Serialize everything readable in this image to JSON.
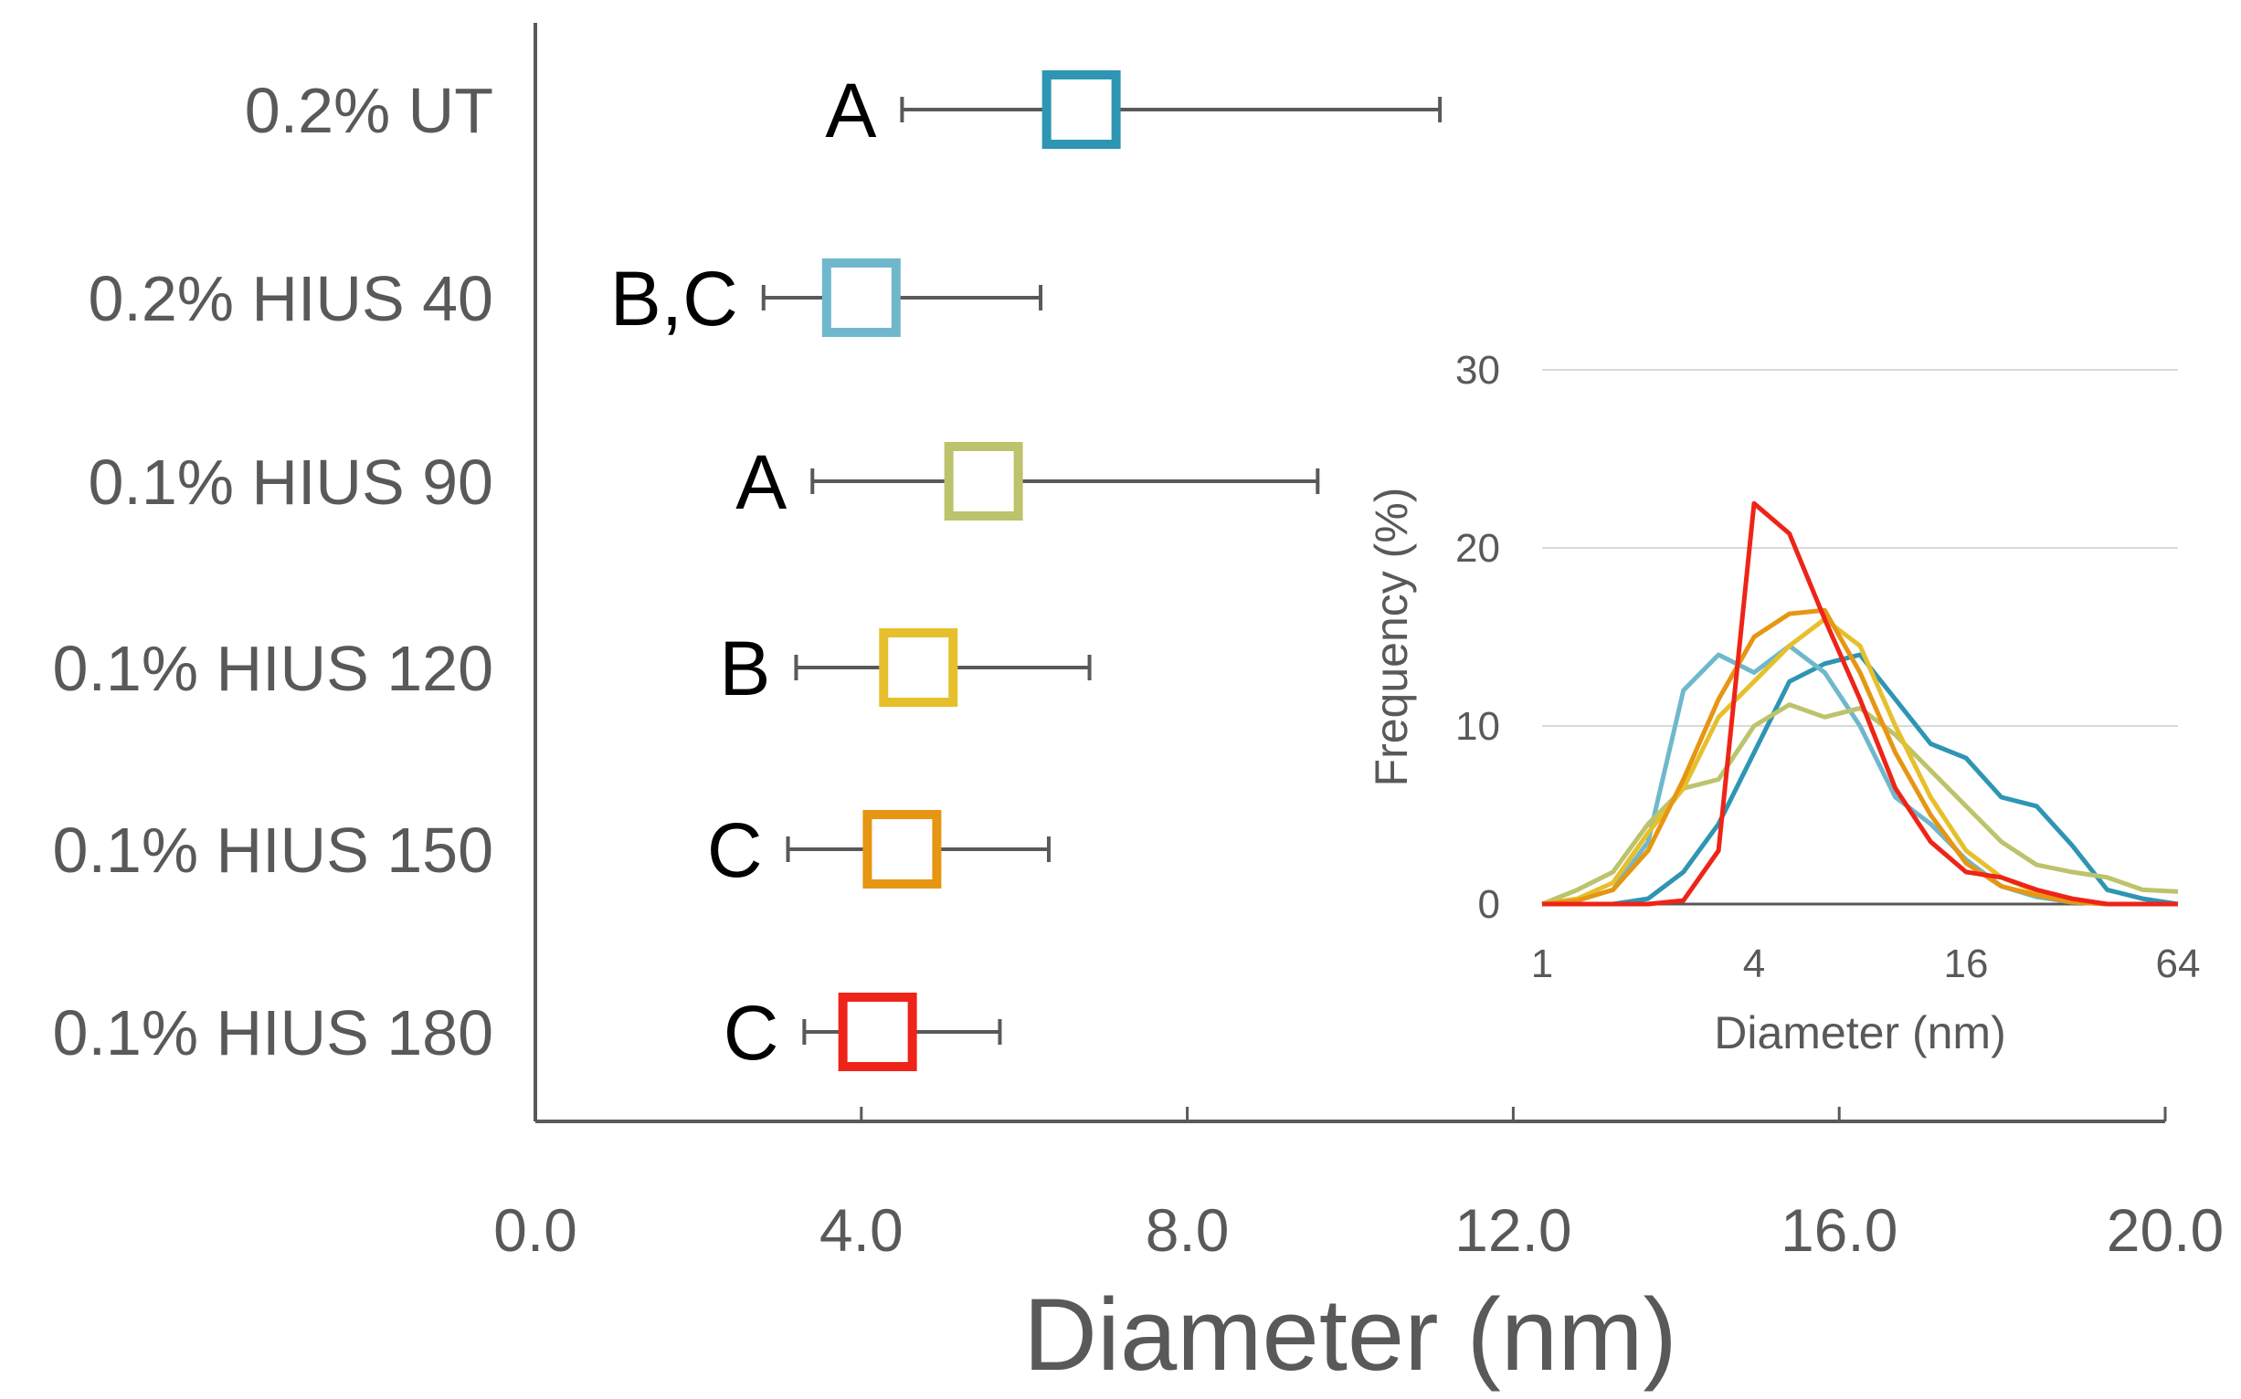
{
  "chart_data": [
    {
      "type": "box",
      "orientation": "horizontal",
      "title": "",
      "xlabel": "Diameter (nm)",
      "ylabel": "",
      "xlim": [
        0,
        20
      ],
      "xticks": [
        "0.0",
        "4.0",
        "8.0",
        "12.0",
        "16.0",
        "20.0"
      ],
      "categories": [
        "0.2% UT",
        "0.2% HIUS 40",
        "0.1% HIUS 90",
        "0.1% HIUS 120",
        "0.1% HIUS 150",
        "0.1% HIUS 180"
      ],
      "series": [
        {
          "name": "0.2% UT",
          "median": 6.7,
          "min": 4.5,
          "max": 11.1,
          "letter": "A",
          "color": "#2e95b3"
        },
        {
          "name": "0.2% HIUS 40",
          "median": 4.0,
          "min": 2.8,
          "max": 6.2,
          "letter": "B,C",
          "color": "#6fb8cc"
        },
        {
          "name": "0.1% HIUS 90",
          "median": 5.5,
          "min": 3.4,
          "max": 9.6,
          "letter": "A",
          "color": "#bcc36c"
        },
        {
          "name": "0.1% HIUS 120",
          "median": 4.7,
          "min": 3.2,
          "max": 6.8,
          "letter": "B",
          "color": "#e6c02c"
        },
        {
          "name": "0.1% HIUS 150",
          "median": 4.5,
          "min": 3.1,
          "max": 6.3,
          "letter": "C",
          "color": "#e69613"
        },
        {
          "name": "0.1% HIUS 180",
          "median": 4.2,
          "min": 3.3,
          "max": 5.7,
          "letter": "C",
          "color": "#ee2418"
        }
      ]
    },
    {
      "type": "line",
      "title": "",
      "xlabel": "Diameter (nm)",
      "ylabel": "Frequency (%)",
      "xscale": "log2",
      "xlim": [
        1,
        64
      ],
      "ylim": [
        0,
        30
      ],
      "xticks": [
        "1",
        "4",
        "16",
        "64"
      ],
      "yticks": [
        "0",
        "10",
        "20",
        "30"
      ],
      "x": [
        1,
        1.26,
        1.59,
        2,
        2.52,
        3.17,
        4,
        5.04,
        6.35,
        8,
        10.08,
        12.7,
        16,
        20.16,
        25.4,
        32,
        40.3,
        50.8,
        64
      ],
      "series": [
        {
          "name": "0.2% UT",
          "color": "#2e95b3",
          "values": [
            0,
            0,
            0,
            0.3,
            1.8,
            4.5,
            8.5,
            12.5,
            13.5,
            14.0,
            11.5,
            9.0,
            8.2,
            6.0,
            5.5,
            3.3,
            0.8,
            0.3,
            0
          ]
        },
        {
          "name": "0.2% HIUS 40",
          "color": "#6fb8cc",
          "values": [
            0,
            0.2,
            0.8,
            3.5,
            12.0,
            14.0,
            13.0,
            14.5,
            13.0,
            10.0,
            6.0,
            4.5,
            2.5,
            1.0,
            0.4,
            0.1,
            0,
            0,
            0
          ]
        },
        {
          "name": "0.1% HIUS 90",
          "color": "#bcc36c",
          "values": [
            0,
            0.8,
            1.8,
            4.5,
            6.5,
            7.0,
            10.0,
            11.2,
            10.5,
            11.0,
            9.5,
            7.5,
            5.5,
            3.5,
            2.2,
            1.8,
            1.5,
            0.8,
            0.7
          ]
        },
        {
          "name": "0.1% HIUS 120",
          "color": "#e6c02c",
          "values": [
            0,
            0.3,
            1.2,
            4.0,
            6.5,
            10.5,
            12.5,
            14.5,
            16.0,
            14.5,
            10.0,
            6.0,
            3.0,
            1.5,
            0.7,
            0.2,
            0,
            0,
            0
          ]
        },
        {
          "name": "0.1% HIUS 150",
          "color": "#e69613",
          "values": [
            0,
            0.2,
            0.8,
            3.0,
            7.0,
            11.5,
            15.0,
            16.3,
            16.5,
            13.0,
            8.5,
            5.0,
            2.3,
            1.0,
            0.5,
            0.1,
            0,
            0,
            0
          ]
        },
        {
          "name": "0.1% HIUS 180",
          "color": "#ee2418",
          "values": [
            0,
            0,
            0,
            0,
            0.2,
            3.0,
            22.5,
            20.8,
            16.0,
            11.5,
            6.5,
            3.5,
            1.8,
            1.5,
            0.8,
            0.3,
            0,
            0,
            0
          ]
        }
      ]
    }
  ]
}
